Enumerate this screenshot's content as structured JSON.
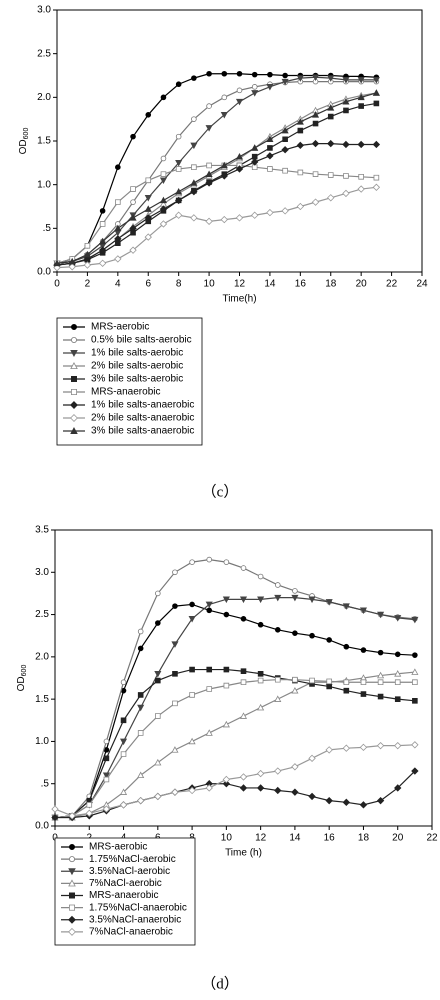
{
  "chart_data": [
    {
      "type": "line",
      "caption": "（c）",
      "xlabel": "Time(h)",
      "ylabel": "OD",
      "ylabel_subscript": "600",
      "xlim": [
        0,
        24
      ],
      "xticks": [
        0,
        2,
        4,
        6,
        8,
        10,
        12,
        14,
        16,
        18,
        20,
        22,
        24
      ],
      "ylim": [
        0,
        3
      ],
      "yticks": [
        {
          "value": 0,
          "label": "0.0"
        },
        {
          "value": 0.5,
          "label": ".5"
        },
        {
          "value": 1,
          "label": "1.0"
        },
        1.5,
        {
          "value": 2,
          "label": "2.0"
        },
        2.5,
        {
          "value": 3,
          "label": "3.0"
        }
      ],
      "x": [
        0,
        1,
        2,
        3,
        4,
        5,
        6,
        7,
        8,
        9,
        10,
        11,
        12,
        13,
        14,
        15,
        16,
        17,
        18,
        19,
        20,
        21
      ],
      "series": [
        {
          "name": "MRS-aerobic",
          "color": "#000000",
          "marker": "circle",
          "marker_fill": "#000000",
          "values": [
            0.1,
            0.15,
            0.3,
            0.7,
            1.2,
            1.55,
            1.8,
            2.0,
            2.15,
            2.22,
            2.27,
            2.27,
            2.27,
            2.26,
            2.26,
            2.25,
            2.25,
            2.25,
            2.25,
            2.24,
            2.24,
            2.23
          ]
        },
        {
          "name": "0.5% bile salts-aerobic",
          "color": "#777777",
          "marker": "circle",
          "marker_fill": "#ffffff",
          "values": [
            0.1,
            0.12,
            0.2,
            0.35,
            0.55,
            0.8,
            1.05,
            1.3,
            1.55,
            1.75,
            1.9,
            2.0,
            2.08,
            2.12,
            2.15,
            2.17,
            2.18,
            2.18,
            2.18,
            2.18,
            2.18,
            2.18
          ]
        },
        {
          "name": "1% bile salts-aerobic",
          "color": "#444444",
          "marker": "triangle-down",
          "marker_fill": "#444444",
          "values": [
            0.1,
            0.12,
            0.18,
            0.3,
            0.45,
            0.65,
            0.85,
            1.05,
            1.25,
            1.45,
            1.65,
            1.8,
            1.95,
            2.05,
            2.12,
            2.18,
            2.22,
            2.23,
            2.22,
            2.2,
            2.2,
            2.2
          ]
        },
        {
          "name": "2% bile salts-aerobic",
          "color": "#888888",
          "marker": "triangle-up",
          "marker_fill": "#ffffff",
          "values": [
            0.08,
            0.1,
            0.15,
            0.25,
            0.38,
            0.52,
            0.65,
            0.78,
            0.9,
            1.0,
            1.1,
            1.2,
            1.3,
            1.42,
            1.55,
            1.65,
            1.75,
            1.85,
            1.92,
            1.98,
            2.02,
            2.05
          ]
        },
        {
          "name": "3% bile salts-aerobic",
          "color": "#222222",
          "marker": "square",
          "marker_fill": "#222222",
          "values": [
            0.08,
            0.1,
            0.14,
            0.22,
            0.33,
            0.45,
            0.58,
            0.7,
            0.82,
            0.93,
            1.03,
            1.12,
            1.22,
            1.32,
            1.42,
            1.52,
            1.62,
            1.7,
            1.78,
            1.85,
            1.9,
            1.93
          ]
        },
        {
          "name": "MRS-anaerobic",
          "color": "#888888",
          "marker": "square",
          "marker_fill": "#ffffff",
          "values": [
            0.1,
            0.15,
            0.3,
            0.55,
            0.8,
            0.95,
            1.05,
            1.12,
            1.18,
            1.2,
            1.22,
            1.22,
            1.22,
            1.2,
            1.18,
            1.16,
            1.14,
            1.12,
            1.11,
            1.1,
            1.09,
            1.08
          ]
        },
        {
          "name": "1% bile salts-anaerobic",
          "color": "#222222",
          "marker": "diamond",
          "marker_fill": "#222222",
          "values": [
            0.08,
            0.1,
            0.15,
            0.25,
            0.38,
            0.5,
            0.62,
            0.72,
            0.82,
            0.92,
            1.02,
            1.1,
            1.18,
            1.26,
            1.33,
            1.4,
            1.45,
            1.47,
            1.47,
            1.46,
            1.46,
            1.46
          ]
        },
        {
          "name": "2% bile salts-anaerobic",
          "color": "#999999",
          "marker": "diamond",
          "marker_fill": "#ffffff",
          "values": [
            0.05,
            0.06,
            0.08,
            0.1,
            0.15,
            0.25,
            0.4,
            0.55,
            0.65,
            0.62,
            0.58,
            0.6,
            0.62,
            0.65,
            0.68,
            0.7,
            0.75,
            0.8,
            0.85,
            0.9,
            0.95,
            0.97
          ]
        },
        {
          "name": "3% bile salts-anaerobic",
          "color": "#333333",
          "marker": "triangle-up",
          "marker_fill": "#333333",
          "values": [
            0.1,
            0.12,
            0.2,
            0.35,
            0.5,
            0.62,
            0.72,
            0.82,
            0.92,
            1.02,
            1.12,
            1.22,
            1.32,
            1.42,
            1.52,
            1.62,
            1.72,
            1.8,
            1.88,
            1.95,
            2.0,
            2.05
          ]
        }
      ]
    },
    {
      "type": "line",
      "caption": "（d）",
      "xlabel": "Time (h)",
      "ylabel": "OD",
      "ylabel_subscript": "600",
      "xlim": [
        0,
        22
      ],
      "xticks": [
        0,
        2,
        4,
        6,
        8,
        10,
        12,
        14,
        16,
        18,
        20,
        22
      ],
      "ylim": [
        0,
        3.5
      ],
      "yticks": [
        {
          "value": 0,
          "label": "0.0"
        },
        {
          "value": 0.5,
          "label": ".5"
        },
        {
          "value": 1,
          "label": "1.0"
        },
        1.5,
        {
          "value": 2,
          "label": "2.0"
        },
        2.5,
        {
          "value": 3,
          "label": "3.0"
        },
        3.5
      ],
      "x": [
        0,
        1,
        2,
        3,
        4,
        5,
        6,
        7,
        8,
        9,
        10,
        11,
        12,
        13,
        14,
        15,
        16,
        17,
        18,
        19,
        20,
        21
      ],
      "series": [
        {
          "name": "MRS-aerobic",
          "color": "#000000",
          "marker": "circle",
          "marker_fill": "#000000",
          "values": [
            0.1,
            0.12,
            0.3,
            0.9,
            1.6,
            2.1,
            2.4,
            2.6,
            2.62,
            2.55,
            2.5,
            2.45,
            2.38,
            2.32,
            2.28,
            2.25,
            2.2,
            2.12,
            2.08,
            2.05,
            2.03,
            2.02
          ]
        },
        {
          "name": "1.75%NaCl-aerobic",
          "color": "#777777",
          "marker": "circle",
          "marker_fill": "#ffffff",
          "values": [
            0.1,
            0.12,
            0.35,
            1.0,
            1.7,
            2.3,
            2.75,
            3.0,
            3.12,
            3.15,
            3.12,
            3.05,
            2.95,
            2.85,
            2.78,
            2.72,
            2.65,
            2.6,
            2.55,
            2.5,
            2.47,
            2.45
          ]
        },
        {
          "name": "3.5%NaCl-aerobic",
          "color": "#444444",
          "marker": "triangle-down",
          "marker_fill": "#444444",
          "values": [
            0.1,
            0.12,
            0.25,
            0.6,
            1.0,
            1.4,
            1.8,
            2.15,
            2.45,
            2.62,
            2.68,
            2.68,
            2.68,
            2.7,
            2.7,
            2.68,
            2.65,
            2.6,
            2.55,
            2.5,
            2.46,
            2.44
          ]
        },
        {
          "name": "7%NaCl-aerobic",
          "color": "#888888",
          "marker": "triangle-up",
          "marker_fill": "#ffffff",
          "values": [
            0.1,
            0.1,
            0.15,
            0.25,
            0.4,
            0.6,
            0.75,
            0.9,
            1.0,
            1.1,
            1.2,
            1.3,
            1.4,
            1.5,
            1.6,
            1.7,
            1.7,
            1.72,
            1.75,
            1.78,
            1.8,
            1.82
          ]
        },
        {
          "name": "MRS-anaerobic",
          "color": "#222222",
          "marker": "square",
          "marker_fill": "#222222",
          "values": [
            0.1,
            0.12,
            0.3,
            0.8,
            1.25,
            1.55,
            1.72,
            1.8,
            1.85,
            1.85,
            1.85,
            1.83,
            1.8,
            1.75,
            1.72,
            1.68,
            1.65,
            1.6,
            1.56,
            1.53,
            1.5,
            1.48
          ]
        },
        {
          "name": "1.75%NaCl-anaerobic",
          "color": "#888888",
          "marker": "square",
          "marker_fill": "#ffffff",
          "values": [
            0.1,
            0.12,
            0.25,
            0.55,
            0.85,
            1.1,
            1.3,
            1.45,
            1.55,
            1.62,
            1.66,
            1.7,
            1.72,
            1.73,
            1.73,
            1.72,
            1.71,
            1.7,
            1.7,
            1.7,
            1.7,
            1.7
          ]
        },
        {
          "name": "3.5%NaCl-anaerobic",
          "color": "#222222",
          "marker": "diamond",
          "marker_fill": "#222222",
          "values": [
            0.1,
            0.1,
            0.12,
            0.18,
            0.25,
            0.3,
            0.35,
            0.4,
            0.45,
            0.5,
            0.5,
            0.45,
            0.45,
            0.42,
            0.4,
            0.35,
            0.3,
            0.28,
            0.25,
            0.3,
            0.45,
            0.65
          ]
        },
        {
          "name": "7%NaCl-anaerobic",
          "color": "#999999",
          "marker": "diamond",
          "marker_fill": "#ffffff",
          "values": [
            0.2,
            0.12,
            0.15,
            0.2,
            0.25,
            0.3,
            0.35,
            0.4,
            0.42,
            0.45,
            0.55,
            0.58,
            0.62,
            0.65,
            0.7,
            0.8,
            0.9,
            0.92,
            0.93,
            0.95,
            0.95,
            0.96
          ]
        }
      ]
    }
  ]
}
